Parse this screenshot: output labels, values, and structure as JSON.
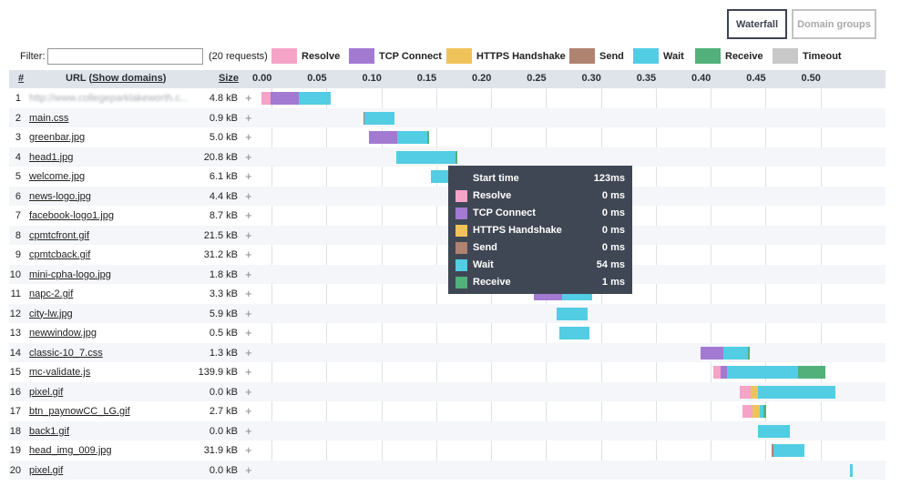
{
  "buttons": {
    "waterfall": "Waterfall",
    "domain_groups": "Domain groups"
  },
  "filter": {
    "label": "Filter:",
    "value": "",
    "count": "(20 requests)"
  },
  "legend": [
    {
      "key": "resolve",
      "label": "Resolve",
      "color": "#f5a3c7"
    },
    {
      "key": "tcp",
      "label": "TCP Connect",
      "color": "#a27ad2"
    },
    {
      "key": "https",
      "label": "HTTPS Handshake",
      "color": "#f0c35a"
    },
    {
      "key": "send",
      "label": "Send",
      "color": "#b08270"
    },
    {
      "key": "wait",
      "label": "Wait",
      "color": "#52cde3"
    },
    {
      "key": "receive",
      "label": "Receive",
      "color": "#52b07a"
    },
    {
      "key": "timeout",
      "label": "Timeout",
      "color": "#c8c8c8"
    }
  ],
  "header": {
    "num": "#",
    "url_prefix": "URL (",
    "show_domains": "Show domains",
    "url_suffix": ")",
    "size": "Size"
  },
  "axis": {
    "ticks": [
      "0.00",
      "0.05",
      "0.10",
      "0.15",
      "0.20",
      "0.25",
      "0.30",
      "0.35",
      "0.40",
      "0.45",
      "0.50"
    ],
    "tick_values": [
      0,
      0.05,
      0.1,
      0.15,
      0.2,
      0.25,
      0.3,
      0.35,
      0.4,
      0.45,
      0.5
    ],
    "unit": "seconds"
  },
  "rows": [
    {
      "num": "1",
      "url": "http://www.collegeparklakeworth.c...",
      "size": "4.8 kB",
      "blur": true,
      "segs": [
        [
          "resolve",
          0.0,
          0.008
        ],
        [
          "tcp",
          0.008,
          0.034
        ],
        [
          "wait",
          0.034,
          0.063
        ]
      ]
    },
    {
      "num": "2",
      "url": "main.css",
      "size": "0.9 kB",
      "segs": [
        [
          "send",
          0.093,
          0.094
        ],
        [
          "wait",
          0.094,
          0.121
        ]
      ]
    },
    {
      "num": "3",
      "url": "greenbar.jpg",
      "size": "5.0 kB",
      "segs": [
        [
          "tcp",
          0.098,
          0.124
        ],
        [
          "wait",
          0.124,
          0.151
        ],
        [
          "receive",
          0.151,
          0.152
        ]
      ]
    },
    {
      "num": "4",
      "url": "head1.jpg",
      "size": "20.8 kB",
      "segs": [
        [
          "wait",
          0.123,
          0.177
        ],
        [
          "receive",
          0.177,
          0.178
        ]
      ]
    },
    {
      "num": "5",
      "url": "welcome.jpg",
      "size": "6.1 kB",
      "segs": [
        [
          "wait",
          0.154,
          0.205
        ]
      ]
    },
    {
      "num": "6",
      "url": "news-logo.jpg",
      "size": "4.4 kB",
      "segs": []
    },
    {
      "num": "7",
      "url": "facebook-logo1.jpg",
      "size": "8.7 kB",
      "segs": []
    },
    {
      "num": "8",
      "url": "cpmtcfront.gif",
      "size": "21.5 kB",
      "segs": []
    },
    {
      "num": "9",
      "url": "cpmtcback.gif",
      "size": "31.2 kB",
      "segs": []
    },
    {
      "num": "10",
      "url": "mini-cpha-logo.jpg",
      "size": "1.8 kB",
      "segs": []
    },
    {
      "num": "11",
      "url": "napc-2.gif",
      "size": "3.3 kB",
      "segs": [
        [
          "tcp",
          0.248,
          0.274
        ],
        [
          "wait",
          0.274,
          0.301
        ]
      ]
    },
    {
      "num": "12",
      "url": "city-lw.jpg",
      "size": "5.9 kB",
      "segs": [
        [
          "wait",
          0.269,
          0.297
        ]
      ]
    },
    {
      "num": "13",
      "url": "newwindow.jpg",
      "size": "0.5 kB",
      "segs": [
        [
          "wait",
          0.271,
          0.299
        ]
      ]
    },
    {
      "num": "14",
      "url": "classic-10_7.css",
      "size": "1.3 kB",
      "segs": [
        [
          "tcp",
          0.4,
          0.421
        ],
        [
          "wait",
          0.421,
          0.443
        ],
        [
          "receive",
          0.443,
          0.444
        ]
      ]
    },
    {
      "num": "15",
      "url": "mc-validate.js",
      "size": "139.9 kB",
      "segs": [
        [
          "resolve",
          0.412,
          0.418
        ],
        [
          "tcp",
          0.418,
          0.424
        ],
        [
          "wait",
          0.424,
          0.489
        ],
        [
          "receive",
          0.489,
          0.514
        ]
      ]
    },
    {
      "num": "16",
      "url": "pixel.gif",
      "size": "0.0 kB",
      "segs": [
        [
          "resolve",
          0.436,
          0.446
        ],
        [
          "https",
          0.446,
          0.452
        ],
        [
          "wait",
          0.452,
          0.523
        ]
      ]
    },
    {
      "num": "17",
      "url": "btn_paynowCC_LG.gif",
      "size": "2.7 kB",
      "segs": [
        [
          "resolve",
          0.438,
          0.447
        ],
        [
          "https",
          0.447,
          0.454
        ],
        [
          "wait",
          0.454,
          0.457
        ],
        [
          "receive",
          0.457,
          0.46
        ]
      ]
    },
    {
      "num": "18",
      "url": "back1.gif",
      "size": "0.0 kB",
      "segs": [
        [
          "wait",
          0.452,
          0.481
        ]
      ]
    },
    {
      "num": "19",
      "url": "head_img_009.jpg",
      "size": "31.9 kB",
      "segs": [
        [
          "send",
          0.465,
          0.466
        ],
        [
          "wait",
          0.466,
          0.495
        ]
      ]
    },
    {
      "num": "20",
      "url": "pixel.gif",
      "size": "0.0 kB",
      "segs": [
        [
          "wait",
          0.536,
          0.539
        ]
      ]
    }
  ],
  "tooltip": {
    "start_label": "Start time",
    "start_value": "123ms",
    "rows": [
      {
        "key": "resolve",
        "label": "Resolve",
        "value": "0 ms"
      },
      {
        "key": "tcp",
        "label": "TCP Connect",
        "value": "0 ms"
      },
      {
        "key": "https",
        "label": "HTTPS Handshake",
        "value": "0 ms"
      },
      {
        "key": "send",
        "label": "Send",
        "value": "0 ms"
      },
      {
        "key": "wait",
        "label": "Wait",
        "value": "54 ms"
      },
      {
        "key": "receive",
        "label": "Receive",
        "value": "1 ms"
      }
    ]
  }
}
